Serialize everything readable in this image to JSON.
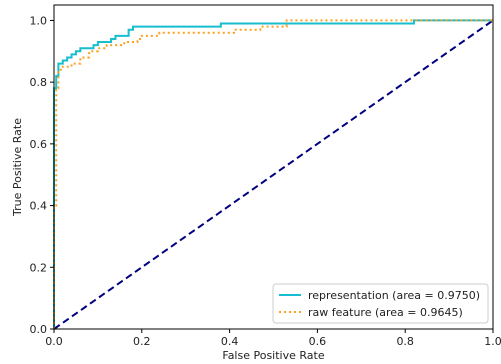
{
  "chart_data": {
    "type": "line",
    "title": "",
    "xlabel": "False Positive Rate",
    "ylabel": "True Positive Rate",
    "xlim": [
      0.0,
      1.0
    ],
    "ylim": [
      0.0,
      1.05
    ],
    "xticks": [
      "0.0",
      "0.2",
      "0.4",
      "0.6",
      "0.8",
      "1.0"
    ],
    "yticks": [
      "0.0",
      "0.2",
      "0.4",
      "0.6",
      "0.8",
      "1.0"
    ],
    "xtick_values": [
      0.0,
      0.2,
      0.4,
      0.6,
      0.8,
      1.0
    ],
    "ytick_values": [
      0.0,
      0.2,
      0.4,
      0.6,
      0.8,
      1.0
    ],
    "grid": false,
    "legend_position": "bottom-right",
    "series": [
      {
        "name": "representation (area = 0.9750)",
        "color": "#17becf",
        "style": "solid",
        "x": [
          0.0,
          0.0,
          0.005,
          0.005,
          0.01,
          0.01,
          0.02,
          0.02,
          0.03,
          0.03,
          0.04,
          0.04,
          0.05,
          0.05,
          0.06,
          0.06,
          0.09,
          0.09,
          0.1,
          0.1,
          0.13,
          0.13,
          0.14,
          0.14,
          0.17,
          0.17,
          0.18,
          0.18,
          0.38,
          0.38,
          0.82,
          0.82,
          1.0
        ],
        "y": [
          0.0,
          0.78,
          0.78,
          0.82,
          0.82,
          0.86,
          0.86,
          0.87,
          0.87,
          0.88,
          0.88,
          0.89,
          0.89,
          0.9,
          0.9,
          0.91,
          0.91,
          0.92,
          0.92,
          0.93,
          0.93,
          0.94,
          0.94,
          0.95,
          0.95,
          0.97,
          0.97,
          0.98,
          0.98,
          0.99,
          0.99,
          1.0,
          1.0
        ]
      },
      {
        "name": "raw feature (area = 0.9645)",
        "color": "#ff9f1c",
        "style": "dotted",
        "x": [
          0.0,
          0.0,
          0.005,
          0.005,
          0.01,
          0.01,
          0.02,
          0.02,
          0.04,
          0.04,
          0.06,
          0.06,
          0.08,
          0.08,
          0.1,
          0.1,
          0.12,
          0.12,
          0.16,
          0.16,
          0.19,
          0.19,
          0.2,
          0.2,
          0.24,
          0.24,
          0.41,
          0.41,
          0.47,
          0.47,
          0.53,
          0.53,
          1.0
        ],
        "y": [
          0.0,
          0.4,
          0.4,
          0.78,
          0.78,
          0.84,
          0.84,
          0.85,
          0.85,
          0.86,
          0.86,
          0.88,
          0.88,
          0.9,
          0.9,
          0.91,
          0.91,
          0.92,
          0.92,
          0.93,
          0.93,
          0.94,
          0.94,
          0.95,
          0.95,
          0.96,
          0.96,
          0.97,
          0.97,
          0.98,
          0.98,
          1.0,
          1.0
        ]
      },
      {
        "name": "",
        "color": "#000080",
        "style": "dashed",
        "x": [
          0.0,
          1.0
        ],
        "y": [
          0.0,
          1.0
        ]
      }
    ]
  }
}
